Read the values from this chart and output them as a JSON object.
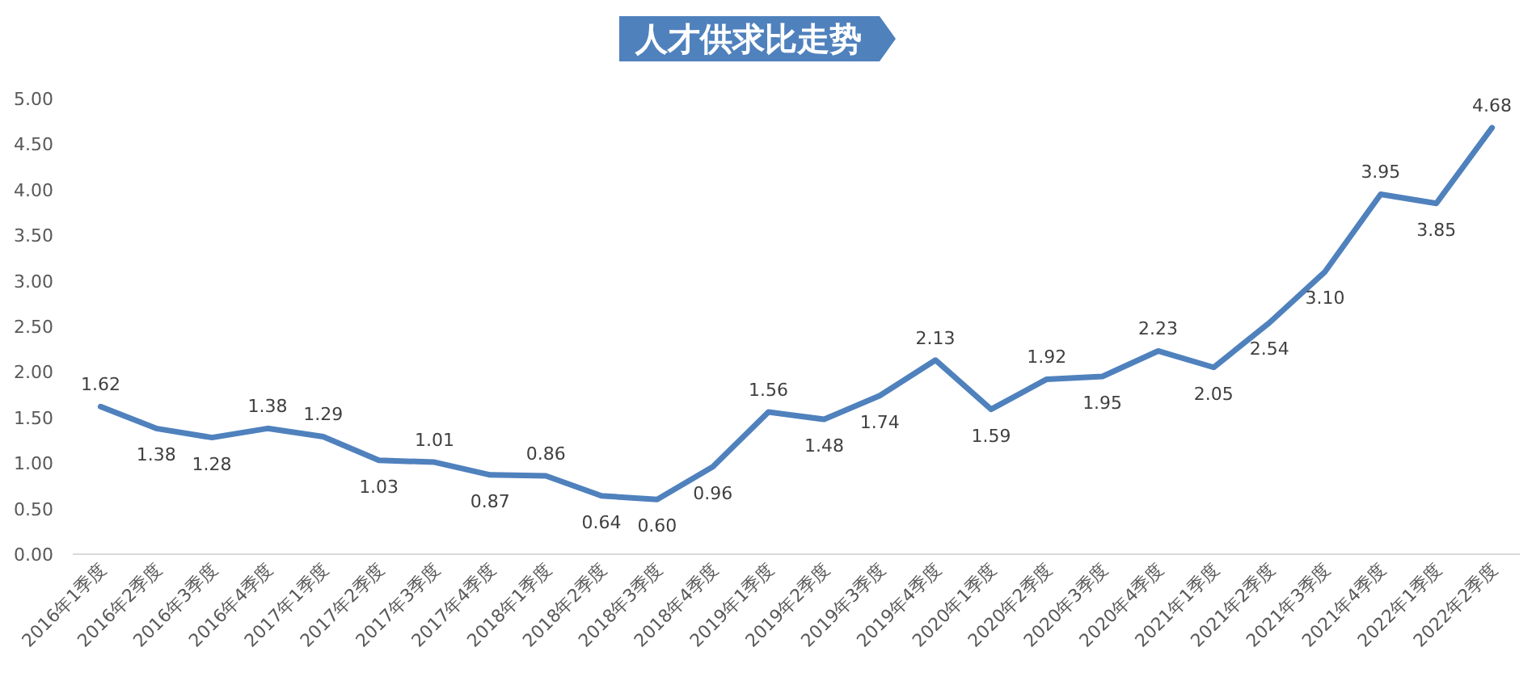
{
  "chart_data": {
    "type": "line",
    "title": "人才供求比走势",
    "categories": [
      "2016年1季度",
      "2016年2季度",
      "2016年3季度",
      "2016年4季度",
      "2017年1季度",
      "2017年2季度",
      "2017年3季度",
      "2017年4季度",
      "2018年1季度",
      "2018年2季度",
      "2018年3季度",
      "2018年4季度",
      "2019年1季度",
      "2019年2季度",
      "2019年3季度",
      "2019年4季度",
      "2020年1季度",
      "2020年2季度",
      "2020年3季度",
      "2020年4季度",
      "2021年1季度",
      "2021年2季度",
      "2021年3季度",
      "2021年4季度",
      "2022年1季度",
      "2022年2季度"
    ],
    "series": [
      {
        "color": "#4f81bd",
        "value_labels": [
          "1.62",
          "1.38",
          "1.28",
          "1.38",
          "1.29",
          "1.03",
          "1.01",
          "0.87",
          "0.86",
          "0.64",
          "0.60",
          "0.96",
          "1.56",
          "1.48",
          "1.74",
          "2.13",
          "1.59",
          "1.92",
          "1.95",
          "2.23",
          "2.05",
          "2.54",
          "3.10",
          "3.95",
          "3.85",
          "4.68"
        ],
        "values": [
          1.62,
          1.38,
          1.28,
          1.38,
          1.29,
          1.03,
          1.01,
          0.87,
          0.86,
          0.64,
          0.6,
          0.96,
          1.56,
          1.48,
          1.74,
          2.13,
          1.59,
          1.92,
          1.95,
          2.23,
          2.05,
          2.54,
          3.1,
          3.95,
          3.85,
          4.68
        ]
      }
    ],
    "ylim": [
      0,
      5
    ],
    "yticks": [
      {
        "value": 0,
        "label": "0.00"
      },
      {
        "value": 0.5,
        "label": "0.50"
      },
      {
        "value": 1,
        "label": "1.00"
      },
      {
        "value": 1.5,
        "label": "1.50"
      },
      {
        "value": 2,
        "label": "2.00"
      },
      {
        "value": 2.5,
        "label": "2.50"
      },
      {
        "value": 3,
        "label": "3.00"
      },
      {
        "value": 3.5,
        "label": "3.50"
      },
      {
        "value": 4,
        "label": "4.00"
      },
      {
        "value": 4.5,
        "label": "4.50"
      },
      {
        "value": 5,
        "label": "5.00"
      }
    ],
    "grid": false,
    "marker": "none",
    "line_style": "solid"
  }
}
